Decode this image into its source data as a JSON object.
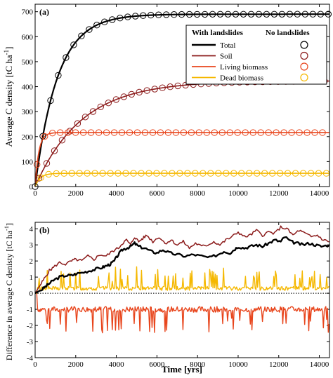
{
  "figure": {
    "x_axis_label": "Time [yrs]"
  },
  "chart_data": [
    {
      "type": "line",
      "panel_label": "(a)",
      "ylabel": "Average C density [tC ha^-1]",
      "ylabel_main": "Average C density [tC ha",
      "ylabel_sup": "-1",
      "ylabel_end": "]",
      "xlim": [
        0,
        14500
      ],
      "ylim": [
        0,
        730
      ],
      "x_ticks": [
        0,
        2000,
        4000,
        6000,
        8000,
        10000,
        12000,
        14000
      ],
      "x_tick_labels": [
        "0",
        "2000",
        "4000",
        "6000",
        "8000",
        "10000",
        "12000",
        "14000"
      ],
      "y_ticks": [
        0,
        100,
        200,
        300,
        400,
        500,
        600,
        700
      ],
      "y_tick_labels": [
        "0",
        "100",
        "200",
        "300",
        "400",
        "500",
        "600",
        "700"
      ],
      "legend": {
        "position": "top-right",
        "header_with": "With landslides",
        "header_without": "No landslides"
      },
      "series": [
        {
          "name": "Total",
          "color": "#000000",
          "asymptote": 690,
          "tau": 1100
        },
        {
          "name": "Soil",
          "color": "#8b1a1a",
          "asymptote": 423,
          "tau": 2300
        },
        {
          "name": "Living biomass",
          "color": "#e8451c",
          "asymptote": 216,
          "tau": 180
        },
        {
          "name": "Dead biomass",
          "color": "#f5b800",
          "asymptote": 53,
          "tau": 250
        }
      ],
      "marker_step": 380
    },
    {
      "type": "line",
      "panel_label": "(b)",
      "ylabel": "Difference in average C denisty [tC ha^-1]",
      "ylabel_main": "Difference in average C denisty [tC ha",
      "ylabel_sup": "-1",
      "ylabel_end": "]",
      "xlim": [
        0,
        14500
      ],
      "ylim": [
        -4,
        4.4
      ],
      "x_ticks": [
        0,
        2000,
        4000,
        6000,
        8000,
        10000,
        12000,
        14000
      ],
      "x_tick_labels": [
        "0",
        "2000",
        "4000",
        "6000",
        "8000",
        "10000",
        "12000",
        "14000"
      ],
      "y_ticks": [
        -4,
        -3,
        -2,
        -1,
        0,
        1,
        2,
        3,
        4
      ],
      "y_tick_labels": [
        "-4",
        "-3",
        "-2",
        "-1",
        "0",
        "1",
        "2",
        "3",
        "4"
      ],
      "zero_line": "dotted",
      "series": [
        {
          "name": "Total",
          "color": "#000000",
          "x": [
            0,
            300,
            500,
            700,
            900,
            1200,
            1500,
            1800,
            2000,
            2400,
            2700,
            3000,
            3300,
            3500,
            3700,
            3900,
            4100,
            4300,
            4500,
            4700,
            4900,
            5100,
            5400,
            5700,
            6000,
            6300,
            6600,
            7000,
            7400,
            7800,
            8200,
            8600,
            9000,
            9300,
            9600,
            9800,
            10000,
            10300,
            10600,
            10900,
            11200,
            11500,
            11800,
            12100,
            12300,
            12600,
            12900,
            13200,
            13500,
            13800,
            14100,
            14500
          ],
          "values": [
            0,
            0.2,
            0.4,
            0.6,
            0.8,
            1.0,
            1.1,
            1.1,
            1.2,
            1.3,
            1.4,
            1.5,
            1.6,
            1.7,
            1.8,
            2.0,
            2.4,
            2.7,
            2.8,
            2.9,
            3.1,
            2.9,
            2.8,
            2.6,
            2.5,
            2.7,
            2.5,
            2.4,
            2.3,
            2.4,
            2.3,
            2.2,
            2.4,
            2.6,
            2.5,
            2.7,
            2.9,
            2.8,
            2.9,
            3.0,
            2.9,
            3.1,
            3.3,
            3.2,
            3.5,
            3.2,
            3.1,
            3.0,
            3.1,
            3.0,
            2.9,
            3.0
          ]
        },
        {
          "name": "Soil",
          "color": "#8b1a1a",
          "x": [
            0,
            300,
            500,
            700,
            900,
            1200,
            1500,
            1800,
            2000,
            2300,
            2600,
            2900,
            3200,
            3500,
            3800,
            4100,
            4300,
            4500,
            4700,
            4900,
            5100,
            5300,
            5500,
            5800,
            6100,
            6400,
            6700,
            7000,
            7300,
            7600,
            7900,
            8200,
            8500,
            8800,
            9100,
            9400,
            9700,
            10000,
            10300,
            10600,
            10900,
            11200,
            11500,
            11800,
            12100,
            12400,
            12700,
            13000,
            13300,
            13600,
            13900,
            14200,
            14500
          ],
          "values": [
            0,
            0.6,
            1.0,
            1.4,
            1.6,
            1.9,
            1.8,
            2.0,
            2.1,
            2.0,
            2.3,
            2.1,
            2.4,
            2.3,
            2.6,
            2.8,
            3.1,
            3.3,
            3.0,
            3.5,
            3.2,
            3.4,
            3.6,
            3.2,
            3.5,
            3.1,
            3.3,
            3.0,
            3.2,
            2.8,
            3.1,
            2.9,
            3.0,
            3.2,
            3.0,
            3.3,
            3.5,
            3.8,
            3.5,
            3.6,
            3.9,
            3.6,
            3.8,
            3.7,
            4.1,
            4.0,
            3.6,
            3.9,
            3.7,
            3.5,
            3.6,
            3.3,
            3.2
          ]
        },
        {
          "name": "Living biomass",
          "color": "#e8451c",
          "baseline": -1.0,
          "noise": 0.35,
          "dip": 1.4,
          "seed": 7
        },
        {
          "name": "Dead biomass",
          "color": "#f5b800",
          "baseline": 0.3,
          "noise": 0.25,
          "spike": 1.3,
          "seed": 13
        }
      ]
    }
  ]
}
